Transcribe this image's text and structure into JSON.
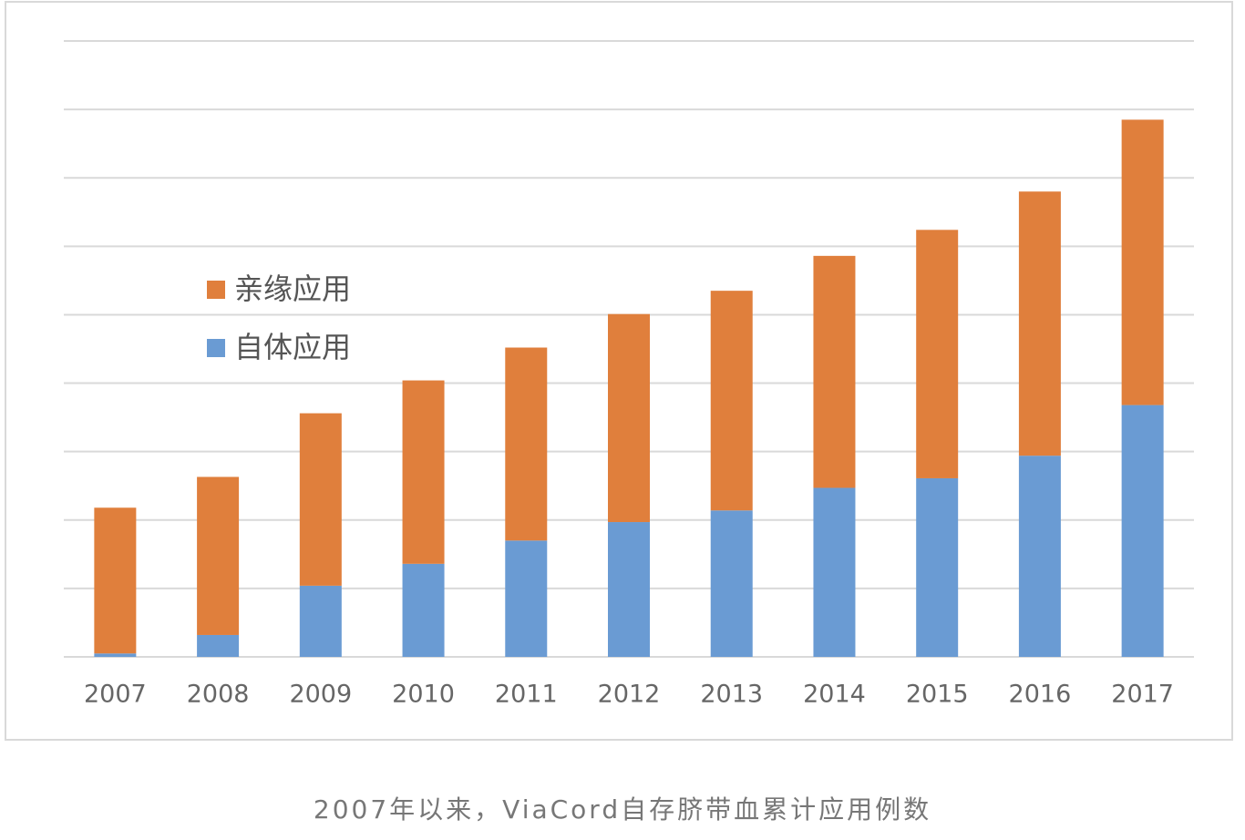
{
  "chart_data": {
    "type": "stacked_bar",
    "categories": [
      "2007",
      "2008",
      "2009",
      "2010",
      "2011",
      "2012",
      "2013",
      "2014",
      "2015",
      "2016",
      "2017"
    ],
    "series": [
      {
        "name": "自体应用",
        "color": "#6a9bd3",
        "values": [
          0.05,
          0.32,
          1.04,
          1.36,
          1.7,
          1.97,
          2.14,
          2.47,
          2.61,
          2.94,
          3.68
        ]
      },
      {
        "name": "亲缘应用",
        "color": "#e07f3c",
        "values": [
          2.13,
          2.31,
          2.52,
          2.68,
          2.82,
          3.04,
          3.21,
          3.39,
          3.63,
          3.86,
          4.17
        ]
      }
    ],
    "ylim": [
      0,
      9
    ],
    "yticks": [
      0,
      1,
      2,
      3,
      4,
      5,
      6,
      7,
      8,
      9
    ],
    "grid": true,
    "legend": "left"
  },
  "caption": "2007年以来，ViaCord自存脐带血累计应用例数"
}
